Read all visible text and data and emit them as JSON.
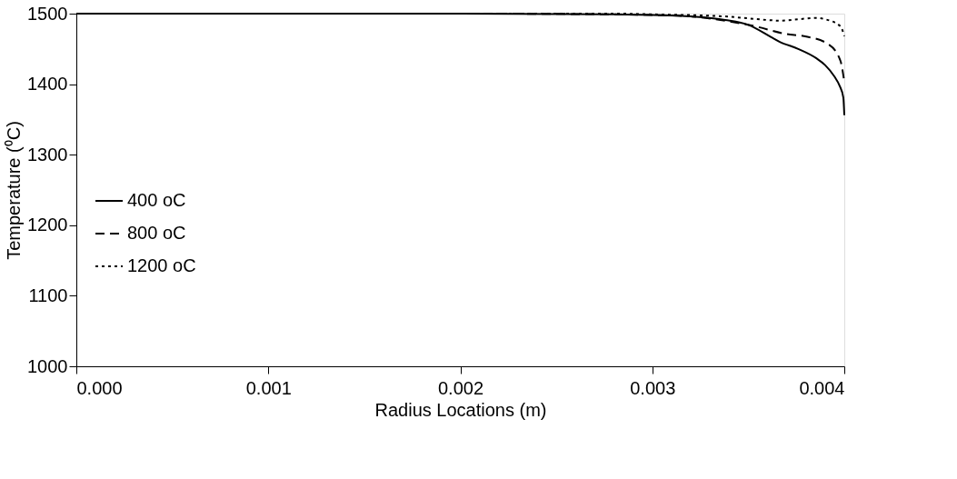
{
  "chart_data": {
    "type": "line",
    "xlabel": "Radius Locations (m)",
    "ylabel": "Temperature (⁰C)",
    "xlim": [
      0,
      0.004
    ],
    "ylim": [
      1000,
      1500
    ],
    "xticks": [
      {
        "value": 0,
        "label": "0.000"
      },
      {
        "value": 0.001,
        "label": "0.001"
      },
      {
        "value": 0.002,
        "label": "0.002"
      },
      {
        "value": 0.003,
        "label": "0.003"
      },
      {
        "value": 0.004,
        "label": "0.004"
      }
    ],
    "yticks": [
      1000,
      1100,
      1200,
      1300,
      1400,
      1500
    ],
    "grid": false,
    "legend": "left",
    "marker": "none",
    "series": [
      {
        "name": "400 oC",
        "color": "#000000",
        "line_style": "solid",
        "x": [
          0,
          0.001,
          0.002,
          0.0028,
          0.003,
          0.0032,
          0.00338,
          0.0035,
          0.003617,
          0.003664,
          0.00376,
          0.003853,
          0.0039,
          0.003948,
          0.003975,
          0.003995,
          0.004
        ],
        "values": [
          1500,
          1500,
          1500,
          1499,
          1498,
          1496,
          1491,
          1484,
          1467,
          1460,
          1450,
          1437,
          1427,
          1411,
          1398,
          1381,
          1356
        ]
      },
      {
        "name": "800 oC",
        "color": "#000000",
        "line_style": "dashed",
        "x": [
          0,
          0.001,
          0.002,
          0.0028,
          0.003,
          0.0032,
          0.00338,
          0.003536,
          0.0037,
          0.00379,
          0.003915,
          0.00398,
          0.004
        ],
        "values": [
          1500,
          1500,
          1500,
          1499,
          1498,
          1496,
          1490,
          1482,
          1471,
          1468,
          1457,
          1433,
          1403
        ]
      },
      {
        "name": "1200 oC",
        "color": "#000000",
        "line_style": "dotted",
        "x": [
          0,
          0.001,
          0.002,
          0.0028,
          0.003,
          0.00338,
          0.0036,
          0.003664,
          0.00376,
          0.003853,
          0.0039,
          0.00398,
          0.004
        ],
        "values": [
          1500,
          1500,
          1500,
          1500,
          1499,
          1496,
          1491,
          1490,
          1492,
          1494,
          1492,
          1482,
          1468
        ]
      }
    ]
  }
}
